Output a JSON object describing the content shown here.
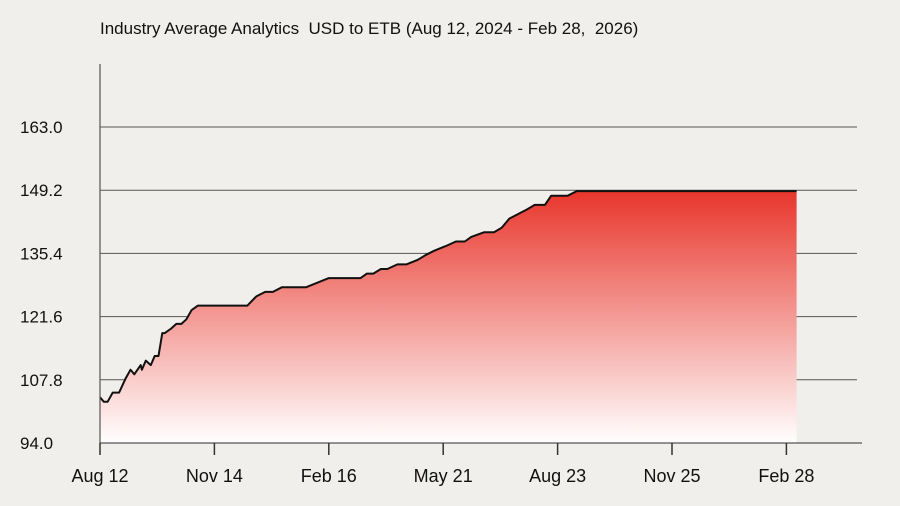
{
  "chart_data": {
    "type": "area",
    "title": "Industry Average Analytics  USD to ETB (Aug 12, 2024 - Feb 28,  2026)",
    "xlabel": "",
    "ylabel": "",
    "ylim": [
      94.0,
      176.8
    ],
    "yticks": [
      "94.0",
      "107.8",
      "121.6",
      "135.4",
      "149.2",
      "163.0"
    ],
    "xticks": [
      "Aug 12",
      "Nov 14",
      "Feb 16",
      "May 21",
      "Aug 23",
      "Nov 25",
      "Feb 28"
    ],
    "grid": "horizontal",
    "legend": "none",
    "colors": {
      "fill_top": "#e8362c",
      "fill_bottom": "#ffffff",
      "line": "#111111",
      "grid": "#555555"
    },
    "series": [
      {
        "x": [
          0,
          0.3,
          0.6,
          1,
          1.2,
          1.5,
          2,
          2.4,
          2.7,
          3.2,
          3.3,
          3.6,
          4,
          4.3,
          4.6,
          4.9,
          5.1,
          5.6,
          6,
          6.4,
          6.8,
          7.2,
          7.7,
          8.1,
          8.6,
          8.9,
          9.2,
          9.7,
          10.2,
          10.7,
          11.2,
          11.6,
          12.3,
          13,
          13.6,
          14.3,
          14.5,
          15,
          15.4,
          16.2,
          17.1,
          18,
          19,
          20,
          20.5,
          21,
          21.5,
          22.1,
          22.6,
          23.4,
          24.1,
          25,
          25.6,
          26.3,
          27.2,
          28,
          28.4,
          28.7,
          29.2,
          30.2,
          31,
          31.6,
          32.2,
          32.9,
          33.6,
          34.2,
          35,
          35.5,
          36.1,
          36.8,
          37.5,
          38.5,
          39.1,
          39.7,
          40.1,
          40.3,
          40.9,
          41.7,
          42.3,
          42.6,
          43,
          43.4,
          44,
          44.6,
          45.4,
          46,
          46.5,
          46.8,
          47.1,
          47.5,
          48.1,
          49,
          50,
          51,
          52,
          53,
          54.8
        ],
        "values": [
          104,
          103,
          103,
          105,
          105,
          105,
          108,
          110,
          109,
          111,
          110,
          112,
          111,
          113,
          113,
          118,
          118,
          119,
          120,
          120,
          121,
          123,
          124,
          124,
          124,
          124,
          124,
          124,
          124,
          124,
          124,
          124,
          126,
          127,
          127,
          128,
          128,
          128,
          128,
          128,
          129,
          130,
          130,
          130,
          130,
          131,
          131,
          132,
          132,
          133,
          133,
          134,
          135,
          136,
          137,
          138,
          138,
          138,
          139,
          140,
          140,
          141,
          143,
          144,
          145,
          146,
          146,
          148,
          148,
          148,
          149,
          149,
          149,
          149,
          149,
          149,
          149,
          149,
          149,
          149,
          149,
          149,
          149,
          149,
          149,
          149,
          149,
          149,
          149,
          149,
          149,
          149,
          149,
          149,
          149,
          149,
          149
        ]
      }
    ]
  }
}
